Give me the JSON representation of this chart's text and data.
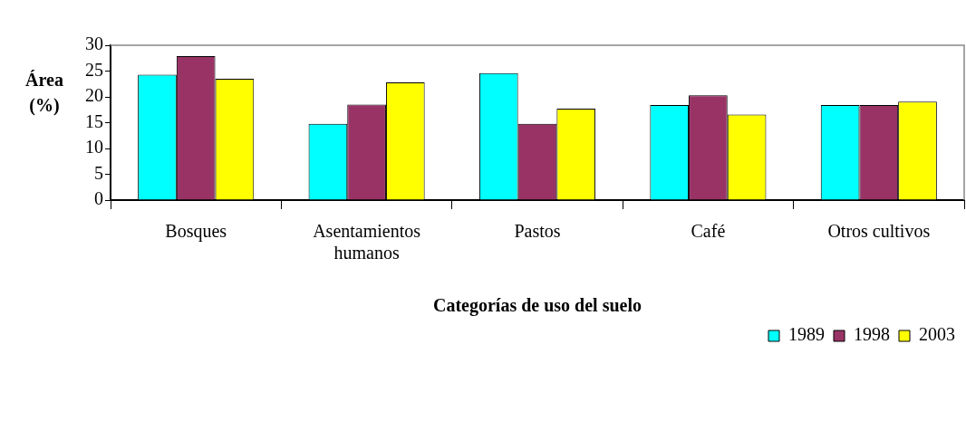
{
  "chart_data": {
    "type": "bar",
    "xlabel": "Categorías de uso del suelo",
    "ylabel": "Área (%)",
    "categories": [
      "Bosques",
      "Asentamientos humanos",
      "Pastos",
      "Café",
      "Otros cultivos"
    ],
    "series": [
      {
        "name": "1989",
        "color": "#00ffff",
        "values": [
          24.3,
          14.8,
          24.6,
          18.4,
          18.4
        ]
      },
      {
        "name": "1998",
        "color": "#993366",
        "values": [
          27.9,
          18.5,
          14.8,
          20.3,
          18.4
        ]
      },
      {
        "name": "2003",
        "color": "#ffff00",
        "values": [
          23.5,
          22.8,
          17.7,
          16.6,
          19.1
        ]
      }
    ],
    "ylim": [
      0,
      30
    ],
    "yticks": [
      0,
      5,
      10,
      15,
      20,
      25,
      30
    ],
    "grid": false,
    "legend": "bottom right"
  }
}
